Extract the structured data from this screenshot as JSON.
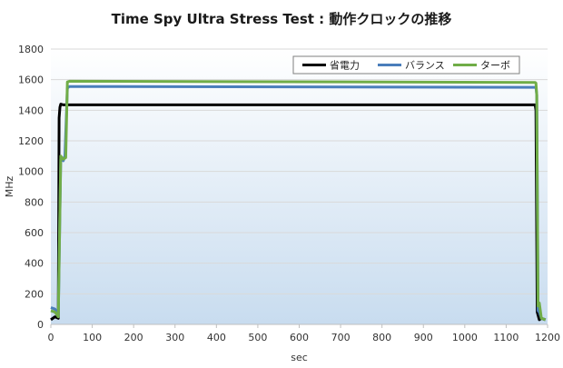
{
  "chart_data": {
    "type": "line",
    "title": "Time Spy Ultra Stress Test : 動作クロックの推移",
    "xlabel": "sec",
    "ylabel": "MHz",
    "xlim": [
      0,
      1200
    ],
    "ylim": [
      0,
      1800
    ],
    "x_ticks": [
      0,
      100,
      200,
      300,
      400,
      500,
      600,
      700,
      800,
      900,
      1000,
      1100,
      1200
    ],
    "y_ticks": [
      0,
      200,
      400,
      600,
      800,
      1000,
      1200,
      1400,
      1600,
      1800
    ],
    "grid": true,
    "legend_position": "top-right",
    "series": [
      {
        "name": "省電力",
        "color": "#000000",
        "points": [
          [
            0,
            30
          ],
          [
            10,
            50
          ],
          [
            18,
            40
          ],
          [
            20,
            1350
          ],
          [
            22,
            1420
          ],
          [
            24,
            1440
          ],
          [
            30,
            1435
          ],
          [
            1170,
            1435
          ],
          [
            1172,
            1400
          ],
          [
            1175,
            80
          ],
          [
            1180,
            30
          ],
          [
            1185,
            40
          ],
          [
            1195,
            30
          ]
        ]
      },
      {
        "name": "バランス",
        "color": "#4a7ebb",
        "points": [
          [
            0,
            110
          ],
          [
            10,
            100
          ],
          [
            18,
            60
          ],
          [
            24,
            1080
          ],
          [
            30,
            1070
          ],
          [
            34,
            1100
          ],
          [
            40,
            1545
          ],
          [
            45,
            1555
          ],
          [
            1172,
            1550
          ],
          [
            1174,
            1500
          ],
          [
            1177,
            90
          ],
          [
            1180,
            80
          ],
          [
            1185,
            40
          ],
          [
            1195,
            30
          ]
        ]
      },
      {
        "name": "ターボ",
        "color": "#70ad47",
        "points": [
          [
            0,
            90
          ],
          [
            10,
            80
          ],
          [
            18,
            50
          ],
          [
            24,
            1100
          ],
          [
            30,
            1080
          ],
          [
            36,
            1090
          ],
          [
            40,
            1585
          ],
          [
            45,
            1590
          ],
          [
            1170,
            1582
          ],
          [
            1172,
            1578
          ],
          [
            1174,
            1500
          ],
          [
            1177,
            120
          ],
          [
            1180,
            140
          ],
          [
            1185,
            40
          ],
          [
            1195,
            30
          ]
        ]
      }
    ]
  }
}
